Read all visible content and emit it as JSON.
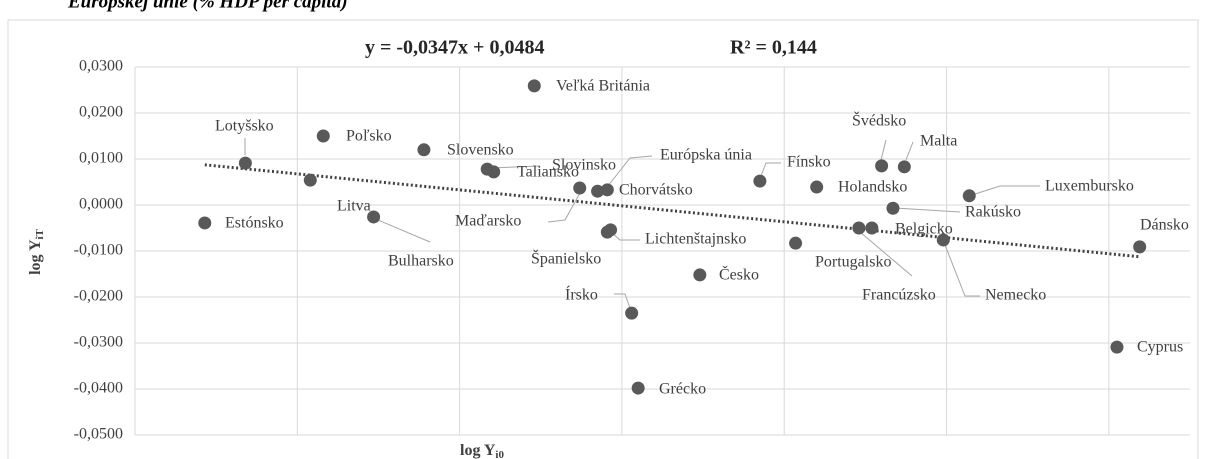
{
  "chart_data": {
    "type": "scatter",
    "title": "Európskej únie (% HDP per capita)",
    "x_label": "log Y",
    "x_label_sub": "i0",
    "y_label": "log Y",
    "y_label_sub": "iT",
    "annotations": [
      "y = -0,0347x + 0,0484",
      "R² = 0,144"
    ],
    "trendline": {
      "slope": -0.0347,
      "intercept": 0.0484
    },
    "color": "#595959",
    "trend_color": "#404040",
    "grid": true,
    "xlim": [
      1.1,
      1.75
    ],
    "xticks": [
      1.1,
      1.2,
      1.3,
      1.4,
      1.5,
      1.6,
      1.7
    ],
    "ylim": [
      -0.05,
      0.03
    ],
    "yticks": [
      {
        "value": -0.05,
        "label": "-0,0500"
      },
      {
        "value": -0.04,
        "label": "-0,0400"
      },
      {
        "value": -0.03,
        "label": "-0,0300"
      },
      {
        "value": -0.02,
        "label": "-0,0200"
      },
      {
        "value": -0.01,
        "label": "-0,0100"
      },
      {
        "value": 0,
        "label": "0,0000"
      },
      {
        "value": 0.01,
        "label": "0,0100"
      },
      {
        "value": 0.02,
        "label": "0,0200"
      },
      {
        "value": 0.03,
        "label": "0,0300"
      }
    ],
    "labels": [
      "Estónsko",
      "Lotyšsko",
      "Litva",
      "Poľsko",
      "Bulharsko",
      "Slovensko",
      "Slovinsko",
      "Taliansko",
      "Veľká Británia",
      "Maďarsko",
      "Chorvátsko",
      "Európska únia",
      "Španielsko",
      "Lichtenštajnsko",
      "Írsko",
      "Grécko",
      "Česko",
      "Fínsko",
      "Portugalsko",
      "Holandsko",
      "Francúzsko",
      "Belgicko",
      "Švédsko",
      "Rakúsko",
      "Malta",
      "Nemecko",
      "Luxembursko",
      "Cyprus",
      "Dánsko"
    ],
    "x": [
      1.143,
      1.168,
      1.208,
      1.216,
      1.247,
      1.278,
      1.317,
      1.321,
      1.346,
      1.374,
      1.385,
      1.391,
      1.391,
      1.393,
      1.406,
      1.41,
      1.448,
      1.485,
      1.507,
      1.52,
      1.546,
      1.554,
      1.56,
      1.567,
      1.574,
      1.598,
      1.614,
      1.705,
      1.719
    ],
    "values": [
      -0.0039,
      0.0091,
      0.0054,
      0.015,
      -0.0026,
      0.012,
      0.0078,
      0.0072,
      0.0259,
      0.0037,
      0.003,
      0.0033,
      -0.0059,
      -0.0054,
      -0.0235,
      -0.0398,
      -0.0152,
      0.0052,
      -0.0083,
      0.0039,
      -0.005,
      -0.005,
      0.0085,
      -0.0007,
      0.0083,
      -0.0076,
      0.002,
      -0.0309,
      -0.0091
    ]
  }
}
